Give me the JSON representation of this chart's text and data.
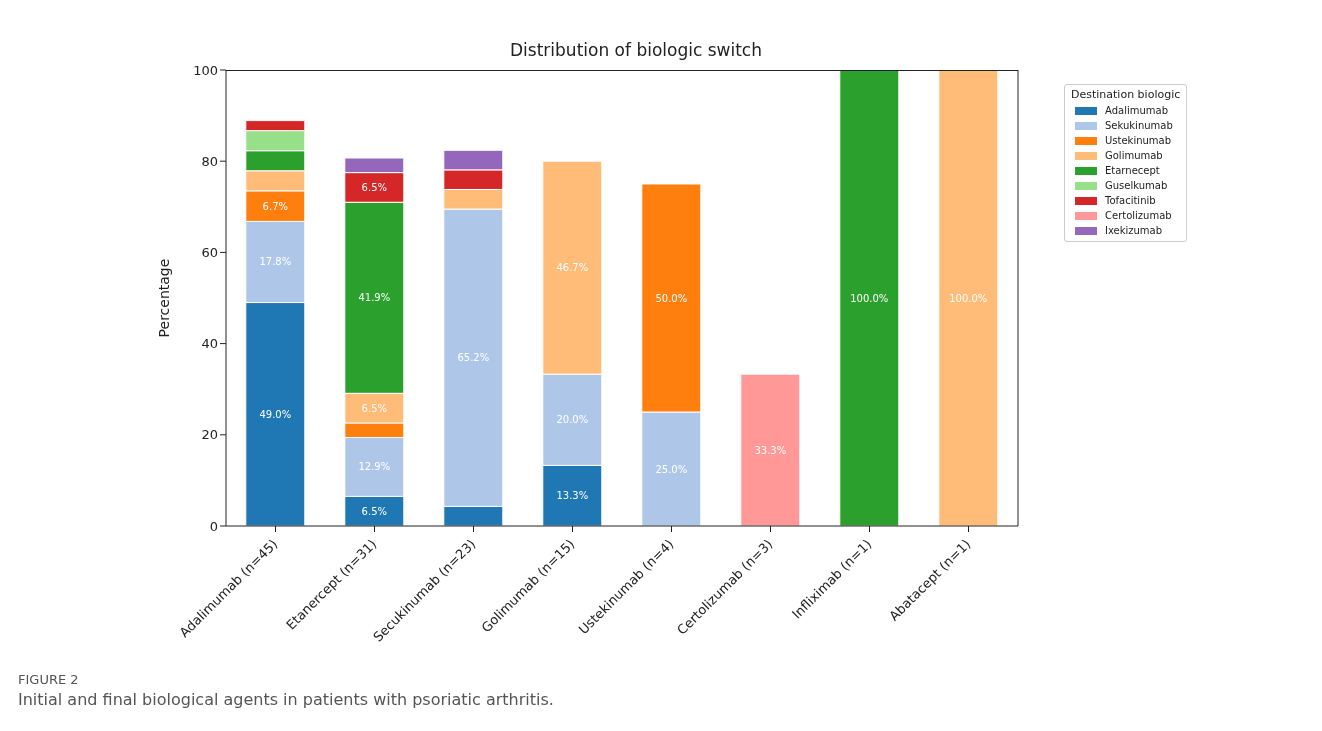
{
  "chart_data": {
    "type": "bar",
    "title": "Distribution of biologic switch",
    "ylabel": "Percentage",
    "legend_title": "Destination biologic",
    "legend": "top right",
    "stacked": true,
    "grid": false,
    "categories": [
      "Adalimumab (n=45)",
      "Etanercept (n=31)",
      "Secukinumab (n=23)",
      "Golimumab (n=15)",
      "Ustekinumab (n=4)",
      "Certolizumab (n=3)",
      "Infliximab (n=1)",
      "Abatacept (n=1)"
    ],
    "ylim": [
      0,
      100
    ],
    "yticks": [
      0,
      20,
      40,
      60,
      80,
      100
    ],
    "series": [
      {
        "name": "Adalimumab",
        "color": "#1f77b4",
        "values": [
          49.0,
          6.5,
          4.3,
          13.3,
          null,
          null,
          null,
          null
        ],
        "value_labels": [
          "49.0%",
          "6.5%",
          null,
          "13.3%",
          null,
          null,
          null,
          null
        ]
      },
      {
        "name": "Sekukinumab",
        "color": "#aec7e8",
        "values": [
          17.8,
          12.9,
          65.2,
          20.0,
          25.0,
          null,
          null,
          null
        ],
        "value_labels": [
          "17.8%",
          "12.9%",
          "65.2%",
          "20.0%",
          "25.0%",
          null,
          null,
          null
        ]
      },
      {
        "name": "Ustekinumab",
        "color": "#ff7f0e",
        "values": [
          6.7,
          3.2,
          null,
          null,
          50.0,
          null,
          null,
          null
        ],
        "value_labels": [
          "6.7%",
          null,
          null,
          null,
          "50.0%",
          null,
          null,
          null
        ]
      },
      {
        "name": "Golimumab",
        "color": "#ffbb78",
        "values": [
          4.4,
          6.5,
          4.3,
          46.7,
          null,
          null,
          null,
          100.0
        ],
        "value_labels": [
          null,
          "6.5%",
          null,
          "46.7%",
          null,
          null,
          null,
          "100.0%"
        ]
      },
      {
        "name": "Etarnecept",
        "color": "#2ca02c",
        "values": [
          4.4,
          41.9,
          null,
          null,
          null,
          null,
          100.0,
          null
        ],
        "value_labels": [
          null,
          "41.9%",
          null,
          null,
          null,
          null,
          "100.0%",
          null
        ]
      },
      {
        "name": "Guselkumab",
        "color": "#98df8a",
        "values": [
          4.4,
          null,
          null,
          null,
          null,
          null,
          null,
          null
        ],
        "value_labels": [
          null,
          null,
          null,
          null,
          null,
          null,
          null,
          null
        ]
      },
      {
        "name": "Tofacitinib",
        "color": "#d62728",
        "values": [
          2.2,
          6.5,
          4.3,
          null,
          null,
          null,
          null,
          null
        ],
        "value_labels": [
          null,
          "6.5%",
          null,
          null,
          null,
          null,
          null,
          null
        ]
      },
      {
        "name": "Certolizumab",
        "color": "#ff9896",
        "values": [
          null,
          null,
          null,
          null,
          null,
          33.3,
          null,
          null
        ],
        "value_labels": [
          null,
          null,
          null,
          null,
          null,
          "33.3%",
          null,
          null
        ]
      },
      {
        "name": "Ixekizumab",
        "color": "#9467bd",
        "values": [
          null,
          3.2,
          4.3,
          null,
          null,
          null,
          null,
          null
        ],
        "value_labels": [
          null,
          null,
          null,
          null,
          null,
          null,
          null,
          null
        ]
      }
    ],
    "annotations": [
      "FIGURE 2",
      "Initial and final biological agents in patients with psoriatic arthritis."
    ]
  }
}
